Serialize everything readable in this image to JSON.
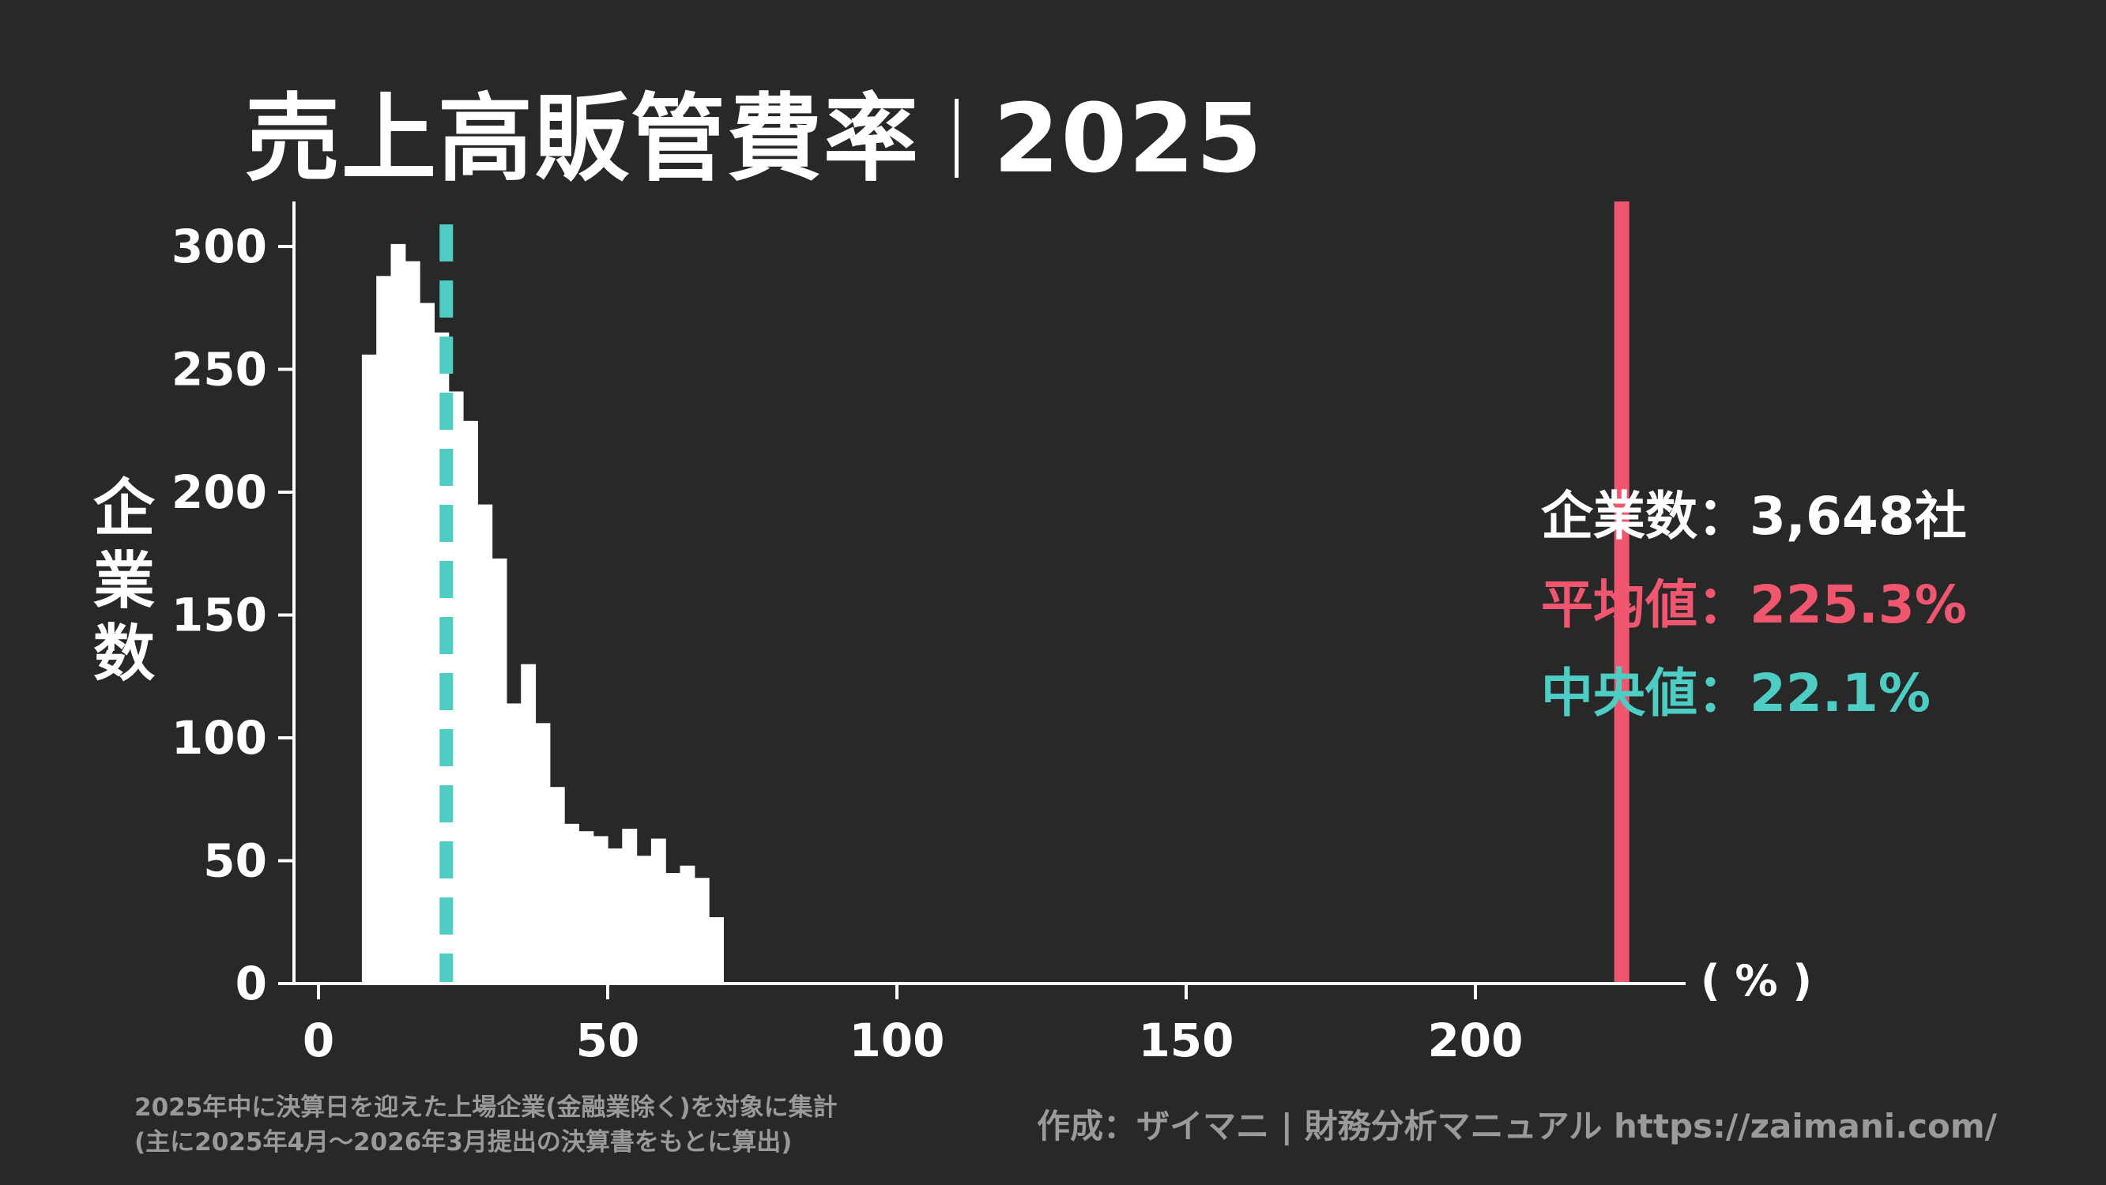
{
  "title": {
    "main": "売上高販管費率",
    "year": "2025"
  },
  "axis": {
    "ylabel": "企業数",
    "xunit": "( % )"
  },
  "stats": {
    "count_label": "企業数",
    "count_value": "：3,648社",
    "mean_label": "平均値",
    "mean_value": "：225.3%",
    "median_label": "中央値",
    "median_value": "：22.1%"
  },
  "footer": {
    "note_line1": "2025年中に決算日を迎えた上場企業(金融業除く)を対象に集計",
    "note_line2": "(主に2025年4月〜2026年3月提出の決算書をもとに算出)",
    "credit": "作成：ザイマニ | 財務分析マニュアル https://zaimani.com/"
  },
  "colors": {
    "background": "#282828",
    "bars": "#ffffff",
    "mean": "#f0566e",
    "median": "#4ecdc4",
    "muted": "#9a9a9a"
  },
  "chart_data": {
    "type": "bar",
    "subtype": "histogram",
    "bin_width": 2.5,
    "bins_start": [
      7.5,
      10,
      12.5,
      15,
      17.5,
      20,
      22.5,
      25,
      27.5,
      30,
      32.5,
      35,
      37.5,
      40,
      42.5,
      45,
      47.5,
      50,
      52.5,
      55,
      57.5,
      60,
      62.5,
      65,
      67.5
    ],
    "values": [
      256,
      288,
      301,
      294,
      277,
      265,
      241,
      229,
      195,
      173,
      114,
      130,
      106,
      80,
      65,
      62,
      60,
      55,
      63,
      52,
      59,
      45,
      48,
      43,
      27
    ],
    "xlim": [
      -5,
      236
    ],
    "ylim": [
      0,
      317
    ],
    "xticks": [
      0,
      50,
      100,
      150,
      200
    ],
    "yticks": [
      0,
      50,
      100,
      150,
      200,
      250,
      300
    ],
    "xlabel": "( % )",
    "ylabel": "企業数",
    "mean": 225.3,
    "median": 22.1,
    "grid": false,
    "legend": "none"
  }
}
